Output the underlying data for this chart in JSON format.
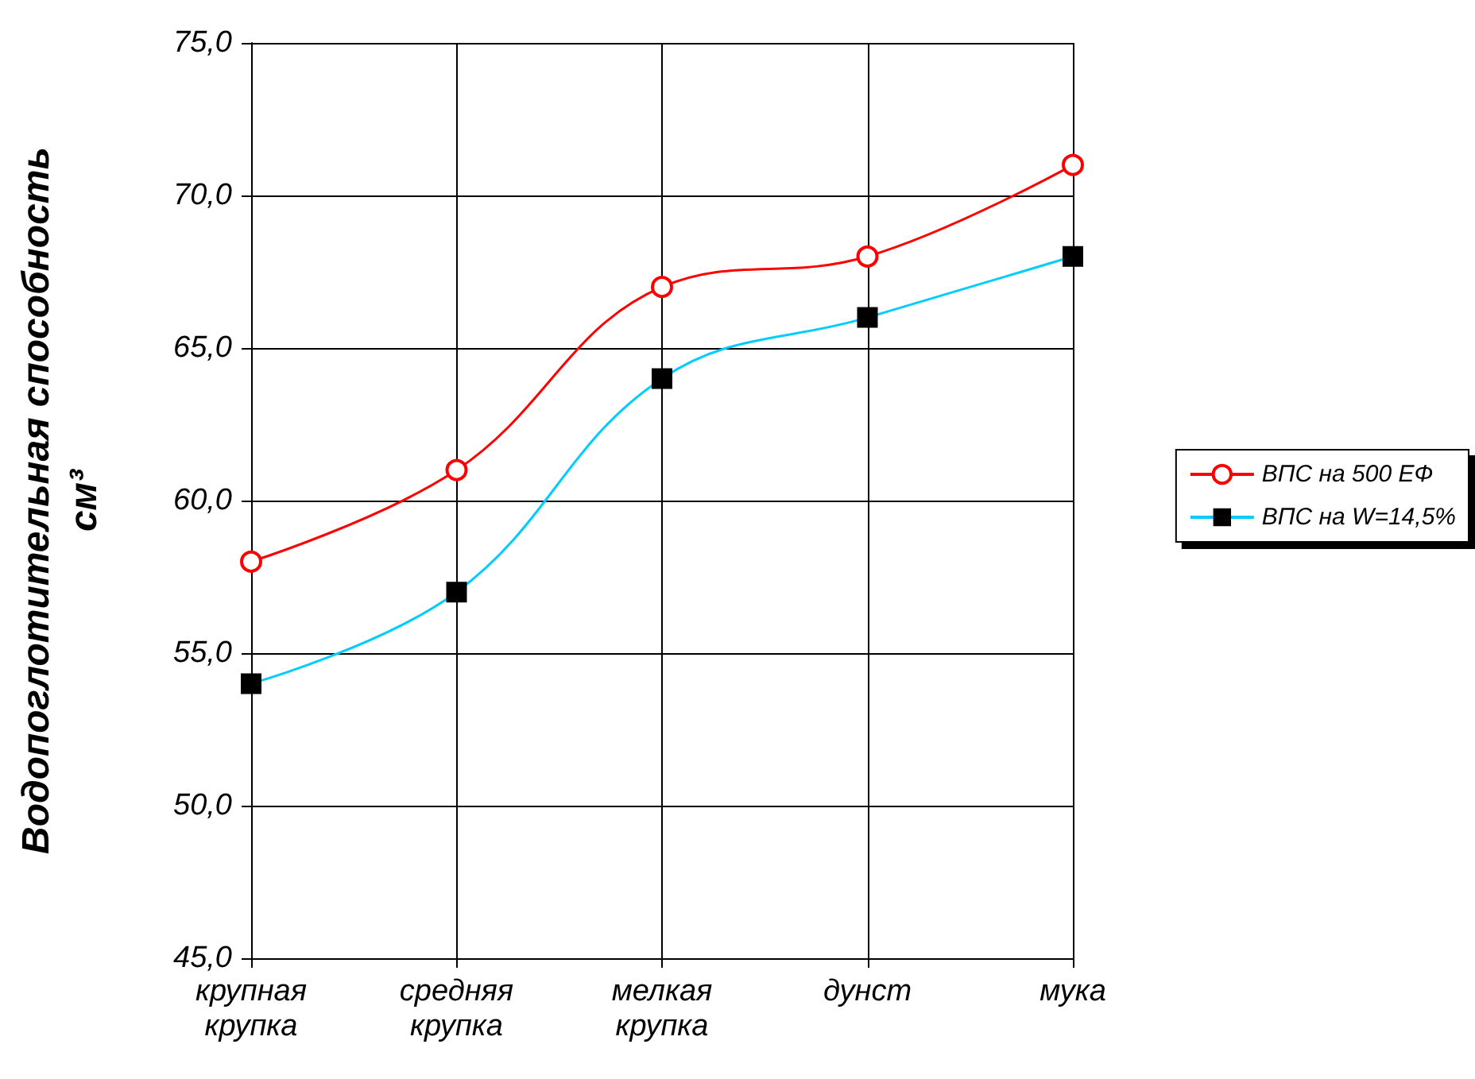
{
  "chart_data": {
    "type": "line",
    "ylabel": "Водопоглотительная способность см³",
    "categories": [
      "крупная крупка",
      "средняя крупка",
      "мелкая крупка",
      "дунст",
      "мука"
    ],
    "series": [
      {
        "name": "ВПС на 500 ЕФ",
        "color": "#ff0000",
        "marker": "circle",
        "values": [
          58,
          61,
          67,
          68,
          71
        ]
      },
      {
        "name": "ВПС на W=14,5%",
        "color": "#00ccff",
        "marker": "square",
        "values": [
          54,
          57,
          64,
          66,
          68
        ]
      }
    ],
    "ylim": [
      45,
      75
    ],
    "yticks": [
      {
        "value": 45,
        "label": "45,0"
      },
      {
        "value": 50,
        "label": "50,0"
      },
      {
        "value": 55,
        "label": "55,0"
      },
      {
        "value": 60,
        "label": "60,0"
      },
      {
        "value": 65,
        "label": "65,0"
      },
      {
        "value": 70,
        "label": "70,0"
      },
      {
        "value": 75,
        "label": "75,0"
      }
    ],
    "grid": true,
    "legend": "right"
  }
}
